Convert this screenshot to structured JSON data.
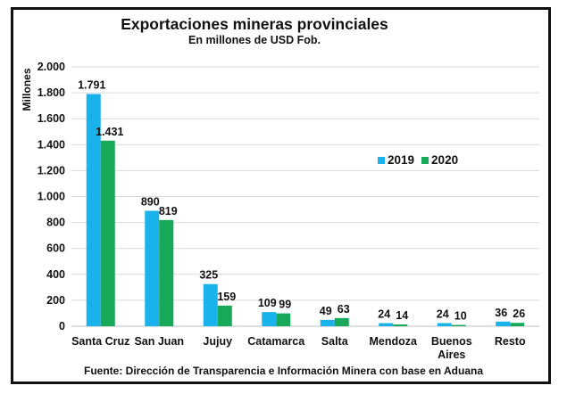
{
  "chart_data": {
    "type": "bar",
    "title": "Exportaciones mineras provinciales",
    "subtitle": "En millones de USD Fob.",
    "ylabel": "Millones",
    "xlabel": "",
    "ylim": [
      0,
      2000
    ],
    "yticks": [
      0,
      200,
      400,
      600,
      800,
      1000,
      1200,
      1400,
      1600,
      1800,
      2000
    ],
    "ytick_labels": [
      "0",
      "200",
      "400",
      "600",
      "800",
      "1.000",
      "1.200",
      "1.400",
      "1.600",
      "1.800",
      "2.000"
    ],
    "categories": [
      [
        "Santa Cruz"
      ],
      [
        "San Juan"
      ],
      [
        "Jujuy"
      ],
      [
        "Catamarca"
      ],
      [
        "Salta"
      ],
      [
        "Mendoza"
      ],
      [
        "Buenos",
        "Aires"
      ],
      [
        "Resto"
      ]
    ],
    "series": [
      {
        "name": "2019",
        "color": "#1ab2ea",
        "values": [
          1791,
          890,
          325,
          109,
          49,
          24,
          24,
          36
        ],
        "labels": [
          "1.791",
          "890",
          "325",
          "109",
          "49",
          "24",
          "24",
          "36"
        ]
      },
      {
        "name": "2020",
        "color": "#17a85a",
        "values": [
          1431,
          819,
          159,
          99,
          63,
          14,
          10,
          26
        ],
        "labels": [
          "1.431",
          "819",
          "159",
          "99",
          "63",
          "14",
          "10",
          "26"
        ]
      }
    ],
    "grid": true,
    "legend_position": "right-middle",
    "source": "Fuente: Dirección de Transparencia e Información Minera con base en Aduana"
  }
}
